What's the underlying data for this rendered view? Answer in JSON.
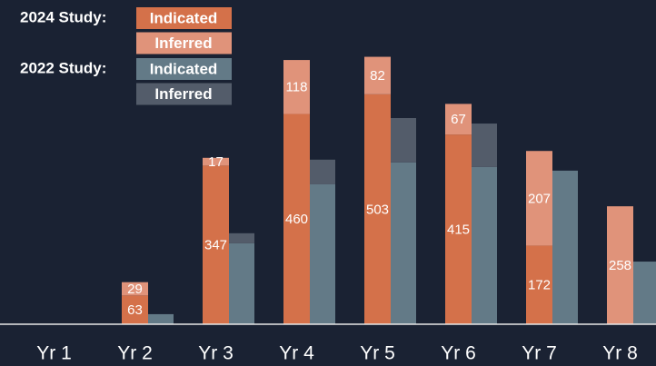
{
  "chart_data": {
    "type": "grouped-stacked-bar",
    "categories": [
      "Yr 1",
      "Yr 2",
      "Yr 3",
      "Yr 4",
      "Yr 5",
      "Yr 6",
      "Yr 7",
      "Yr 8"
    ],
    "groups": [
      {
        "name": "2024 Study:",
        "series": [
          {
            "name": "Indicated",
            "color": "#d4714a",
            "values": [
              null,
              63,
              347,
              460,
              503,
              415,
              172,
              null
            ]
          },
          {
            "name": "Inferred",
            "color": "#e0937a",
            "values": [
              null,
              29,
              17,
              118,
              82,
              67,
              207,
              258
            ]
          }
        ],
        "value_labels": true
      },
      {
        "name": "2022 Study:",
        "series": [
          {
            "name": "Indicated",
            "color": "#637a87",
            "values": [
              null,
              22,
              177,
              306,
              354,
              344,
              336,
              137
            ]
          },
          {
            "name": "Inferred",
            "color": "#535c6a",
            "values": [
              null,
              0,
              22,
              54,
              97,
              95,
              0,
              0
            ]
          }
        ],
        "value_labels": false
      }
    ],
    "ylim": [
      0,
      600
    ]
  }
}
